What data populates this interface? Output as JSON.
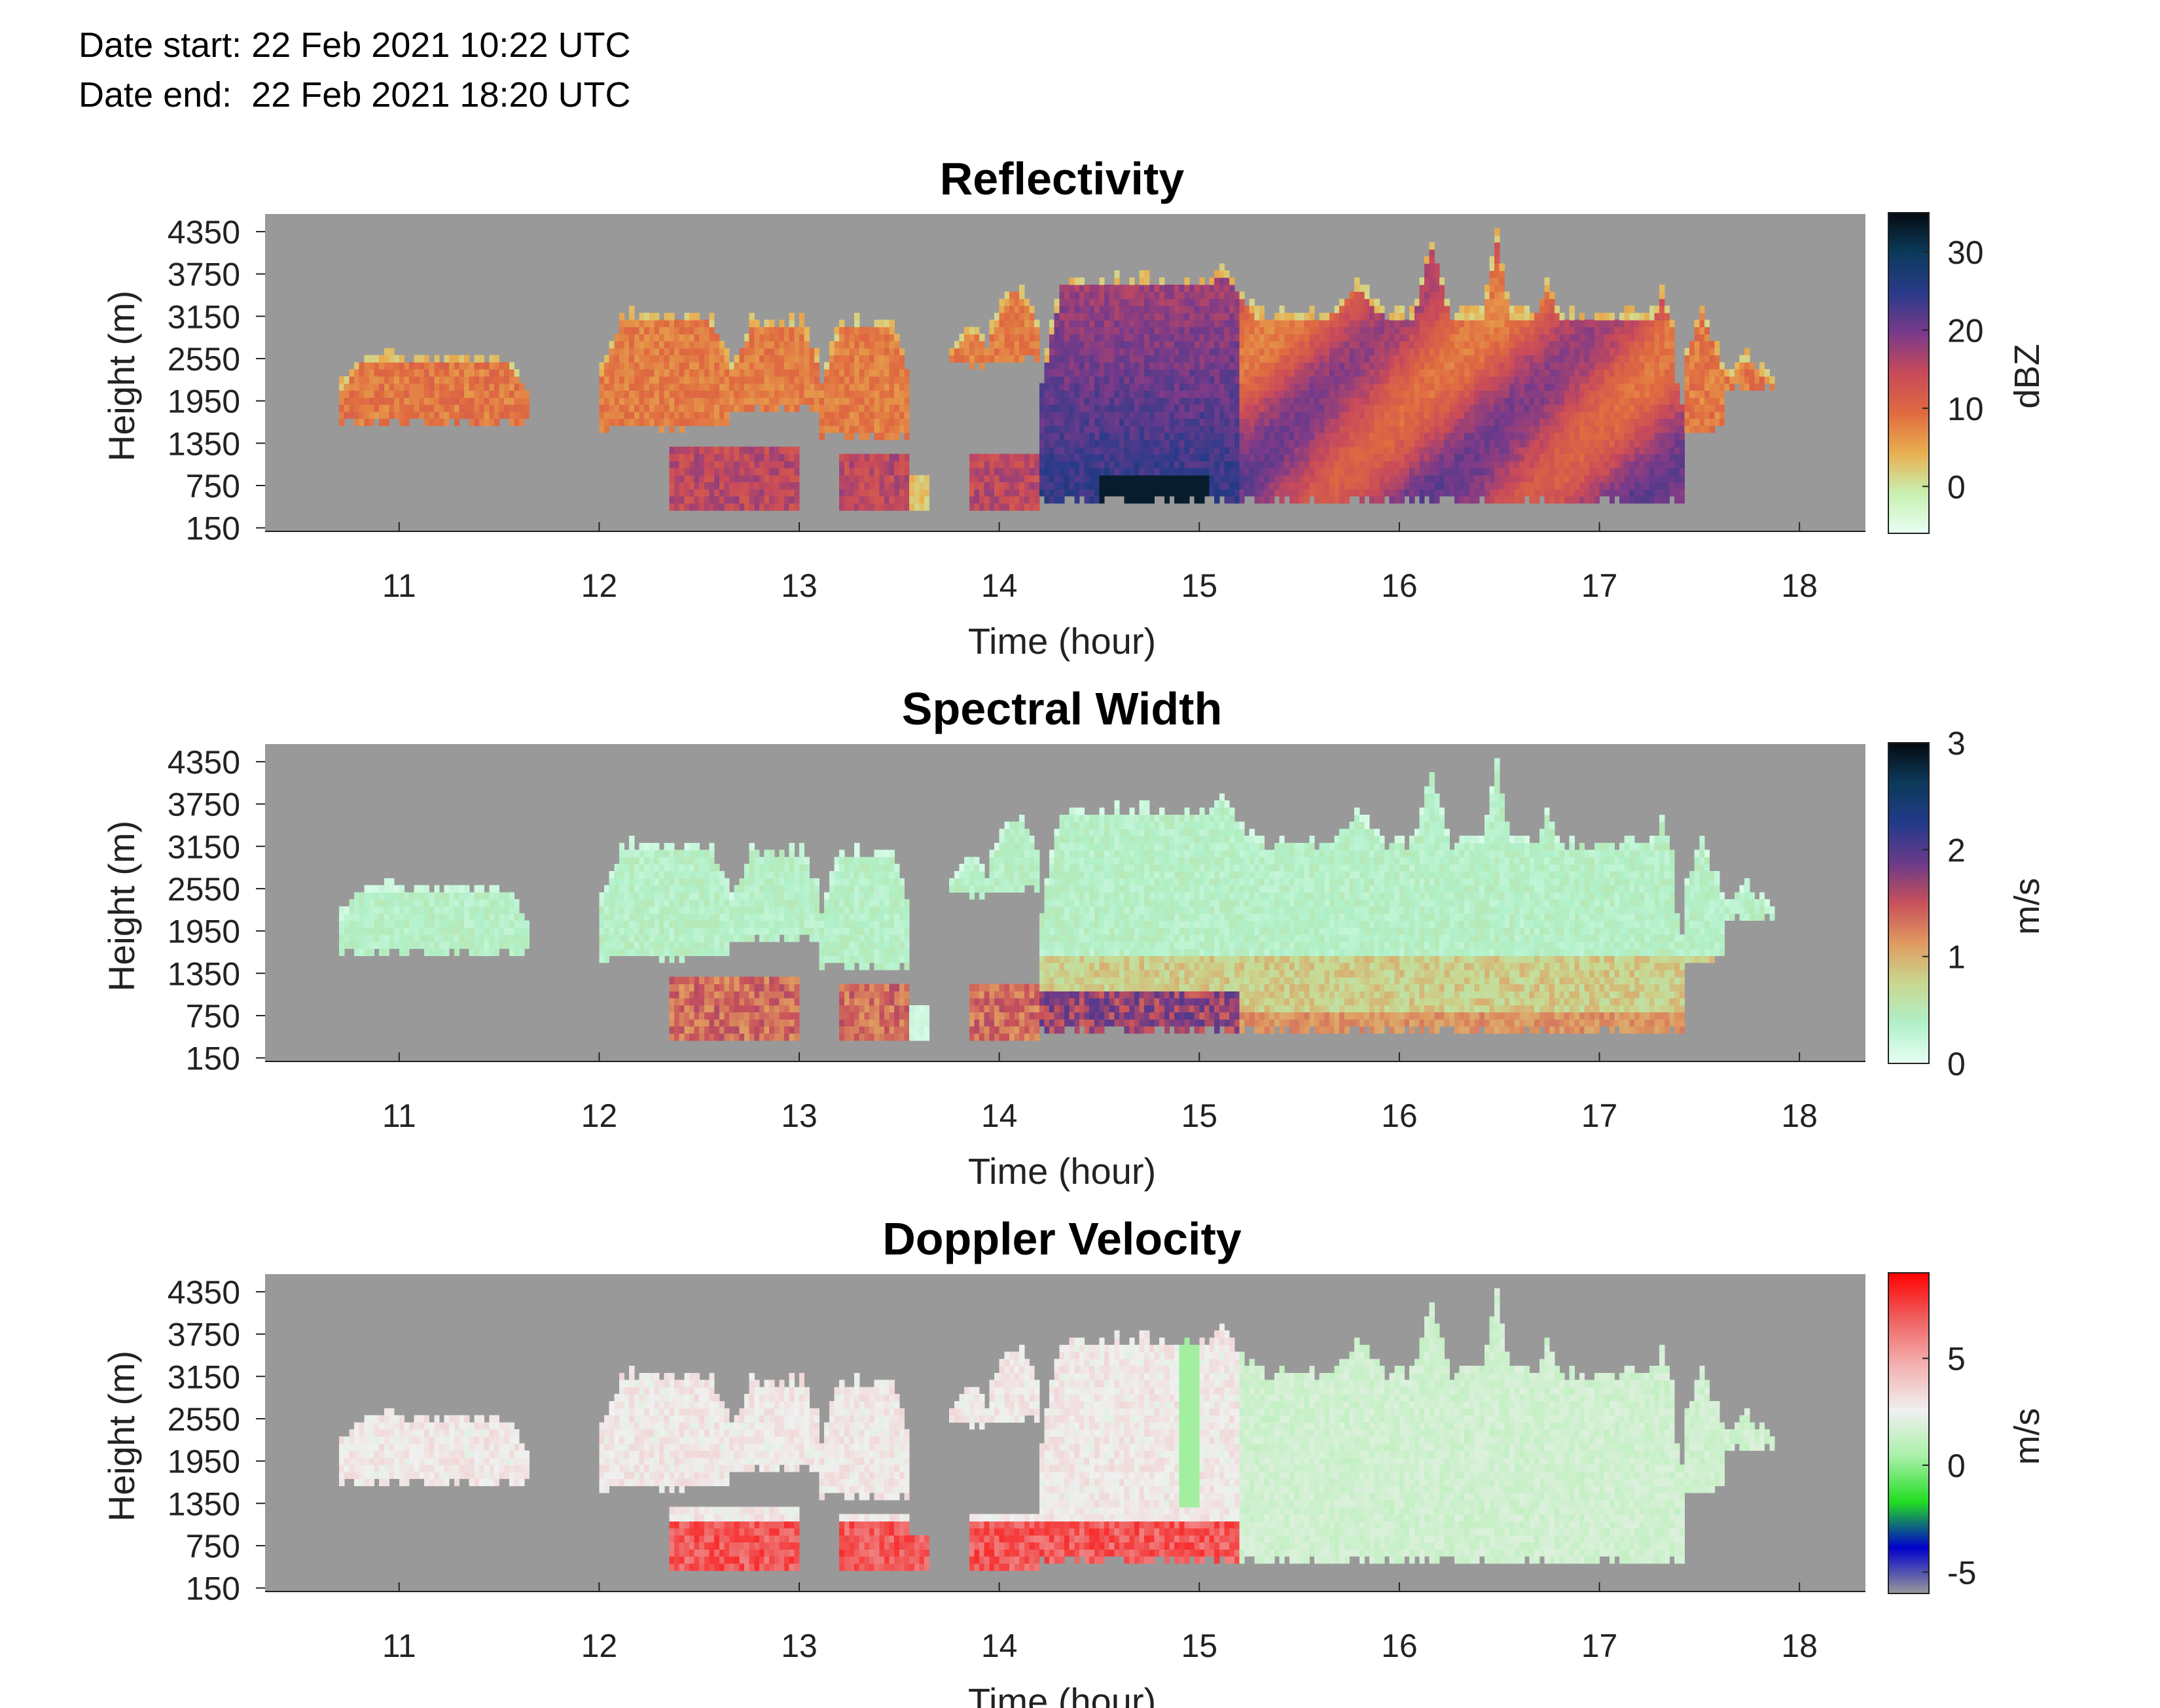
{
  "header": {
    "date_start": "Date start: 22 Feb 2021 10:22 UTC",
    "date_end": "Date end:  22 Feb 2021 18:20 UTC"
  },
  "chart_data": [
    {
      "type": "heatmap",
      "title": "Reflectivity",
      "xlabel": "Time (hour)",
      "ylabel": "Height (m)",
      "xlim": [
        10.33,
        18.33
      ],
      "ylim": [
        100,
        4600
      ],
      "xticks": [
        11,
        12,
        13,
        14,
        15,
        16,
        17,
        18
      ],
      "yticks": [
        150,
        750,
        1350,
        1950,
        2550,
        3150,
        3750,
        4350
      ],
      "colorbar": {
        "label": "dBZ",
        "range": [
          -6,
          35
        ],
        "ticks": [
          0,
          10,
          20,
          30
        ],
        "colors": [
          "#e8fff4",
          "#c8f0b0",
          "#e8b050",
          "#e06a40",
          "#c84a5a",
          "#7a3a8a",
          "#2a3a8a",
          "#0b3a5a",
          "#050a10"
        ]
      },
      "background": "#999999",
      "field": "reflectivity"
    },
    {
      "type": "heatmap",
      "title": "Spectral Width",
      "xlabel": "Time (hour)",
      "ylabel": "Height (m)",
      "xlim": [
        10.33,
        18.33
      ],
      "ylim": [
        100,
        4600
      ],
      "xticks": [
        11,
        12,
        13,
        14,
        15,
        16,
        17,
        18
      ],
      "yticks": [
        150,
        750,
        1350,
        1950,
        2550,
        3150,
        3750,
        4350
      ],
      "colorbar": {
        "label": "m/s",
        "range": [
          0,
          3
        ],
        "ticks": [
          0,
          1,
          2,
          3
        ],
        "colors": [
          "#e8fff4",
          "#b0f0c8",
          "#c8d890",
          "#e09a60",
          "#c8505a",
          "#6a3a8a",
          "#223a8a",
          "#0b3a5a",
          "#050a10"
        ]
      },
      "background": "#999999",
      "field": "spectral_width"
    },
    {
      "type": "heatmap",
      "title": "Doppler Velocity",
      "xlabel": "Time (hour)",
      "ylabel": "Height (m)",
      "xlim": [
        10.33,
        18.33
      ],
      "ylim": [
        100,
        4600
      ],
      "xticks": [
        11,
        12,
        13,
        14,
        15,
        16,
        17,
        18
      ],
      "yticks": [
        150,
        750,
        1350,
        1950,
        2550,
        3150,
        3750,
        4350
      ],
      "colorbar": {
        "label": "m/s",
        "range": [
          -6,
          9
        ],
        "ticks": [
          -5,
          0,
          5
        ],
        "colors": [
          "#999999",
          "#0000cc",
          "#22dd22",
          "#aaf0aa",
          "#f0f0f0",
          "#f4b0b0",
          "#f06060",
          "#ff0000"
        ]
      },
      "background": "#999999",
      "field": "doppler_velocity"
    }
  ]
}
